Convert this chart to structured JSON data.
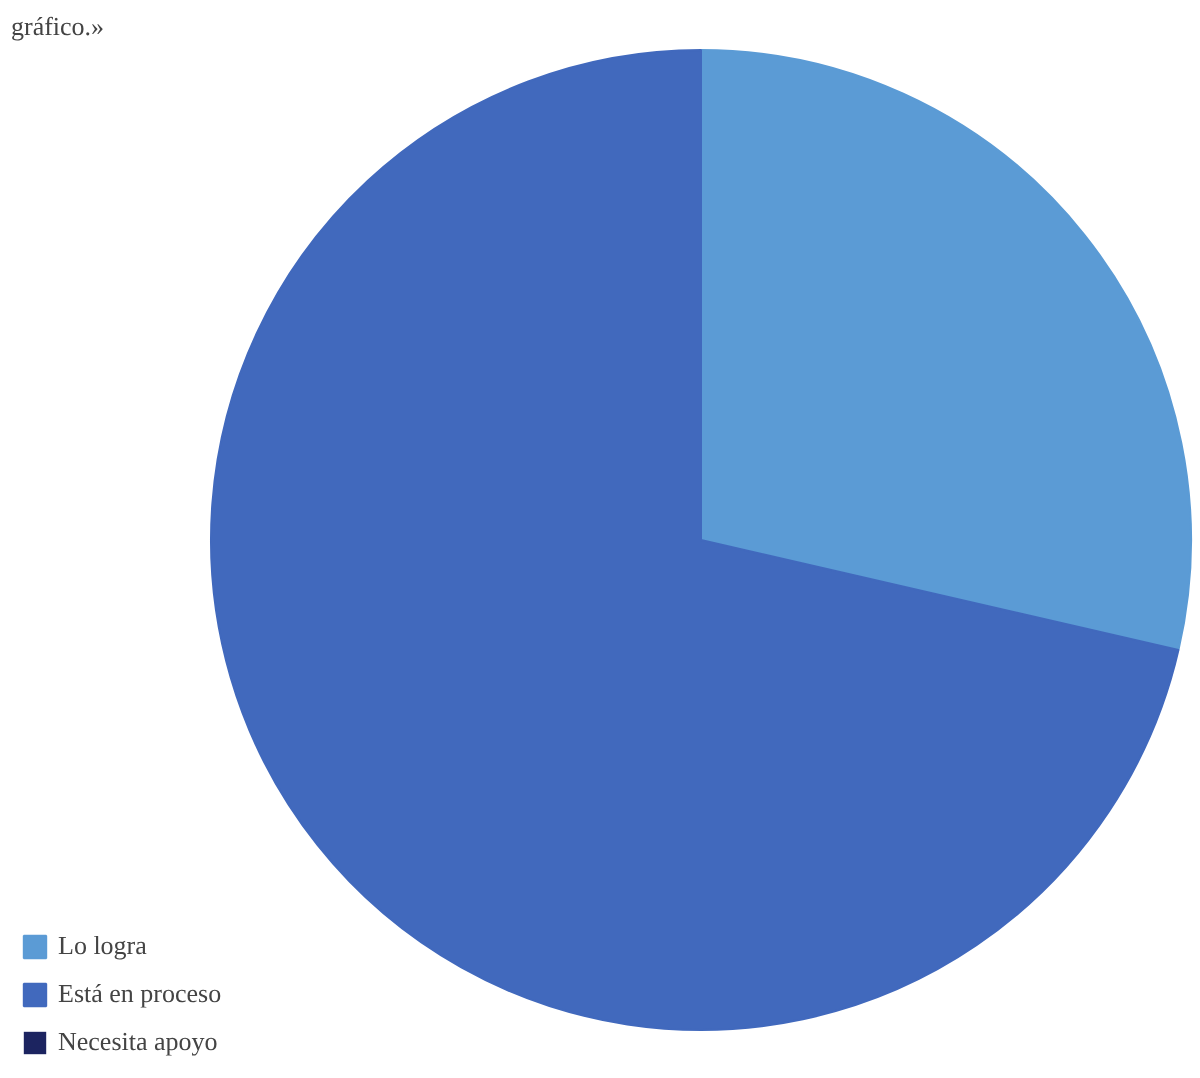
{
  "chart_data": {
    "type": "pie",
    "annotations": [
      "gráfico.»"
    ],
    "categories": [
      "Lo logra",
      "Está en proceso",
      "Necesita apoyo"
    ],
    "values": [
      28.6,
      71.4,
      0
    ],
    "colors": [
      "#5b9bd5",
      "#4169bd",
      "#1c2460"
    ],
    "legend": "bottom left"
  }
}
